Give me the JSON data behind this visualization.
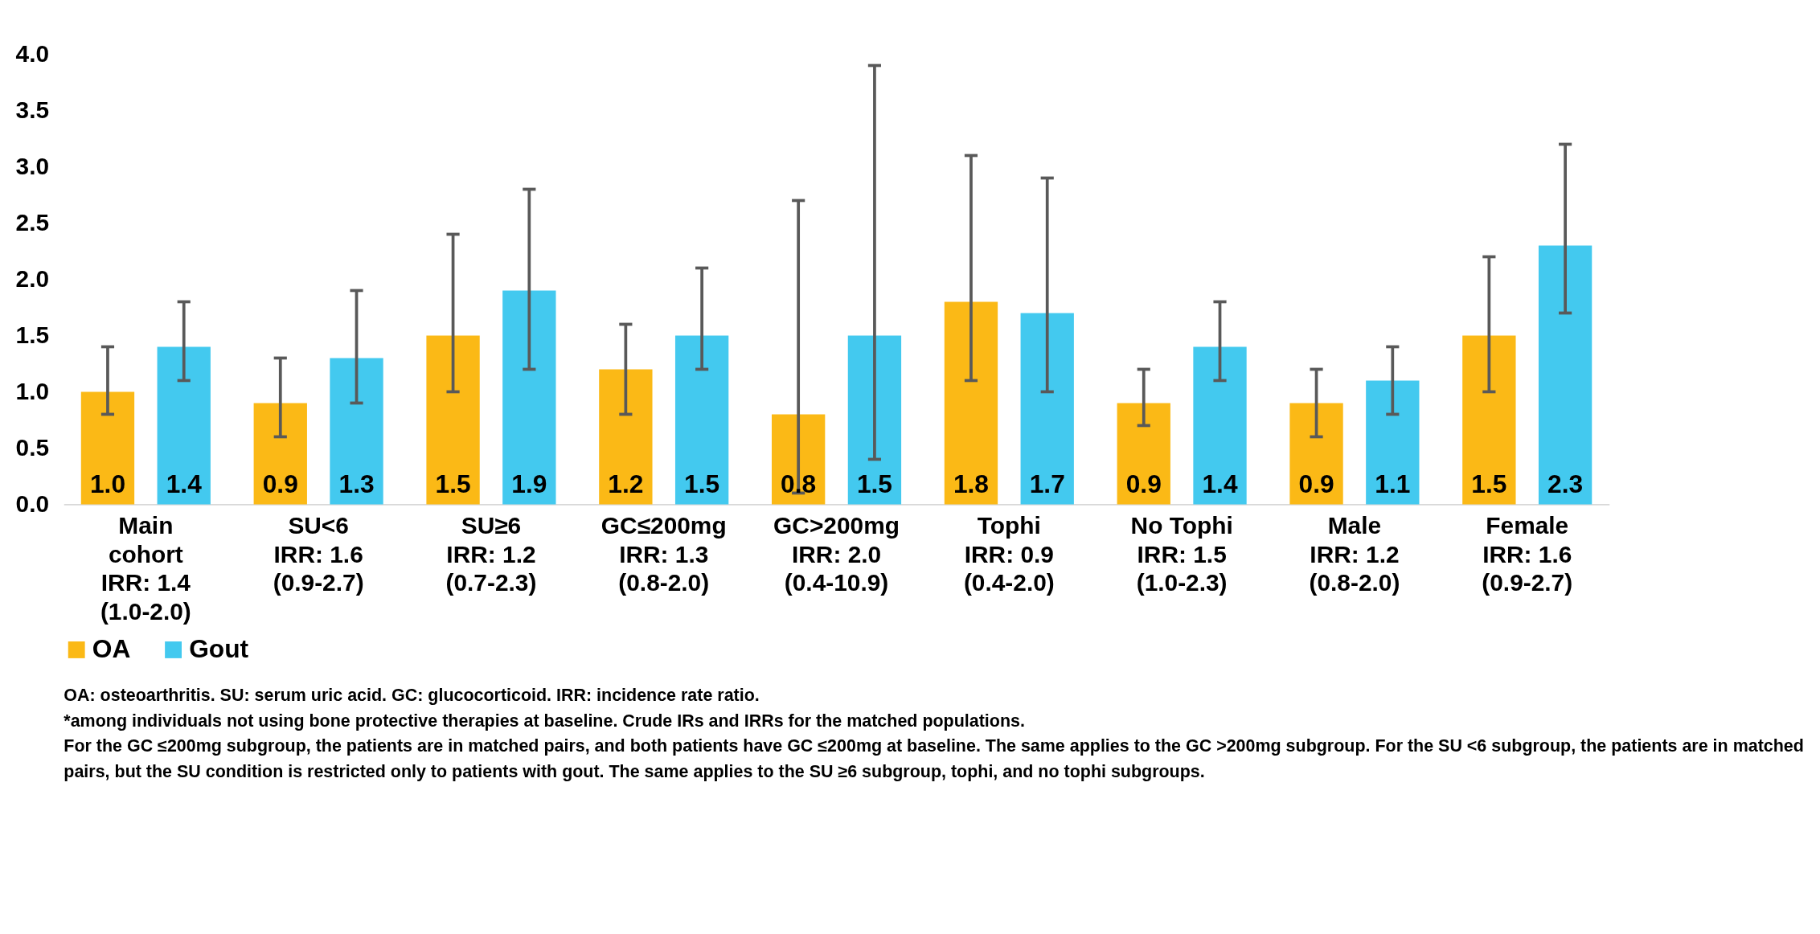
{
  "chart_data": {
    "type": "bar",
    "categories": [
      "Main\ncohort\nIRR: 1.4\n(1.0-2.0)",
      "SU<6\n\nIRR: 1.6\n(0.9-2.7)",
      "SU≥6\n\nIRR: 1.2\n(0.7-2.3)",
      "GC≤200mg\n\nIRR: 1.3\n(0.8-2.0)",
      "GC>200mg\n\nIRR: 2.0\n(0.4-10.9)",
      "Tophi\n\nIRR: 0.9\n(0.4-2.0)",
      "No Tophi\n\nIRR: 1.5\n(1.0-2.3)",
      "Male\n\nIRR: 1.2\n(0.8-2.0)",
      "Female\n\nIRR: 1.6\n(0.9-2.7)"
    ],
    "series": [
      {
        "name": "OA",
        "color": "#fbb916",
        "values": [
          1.0,
          0.9,
          1.5,
          1.2,
          0.8,
          1.8,
          0.9,
          0.9,
          1.5
        ],
        "value_labels": [
          "1.0",
          "0.9",
          "1.5",
          "1.2",
          "0.8",
          "1.8",
          "0.9",
          "0.9",
          "1.5"
        ],
        "errors": [
          [
            0.8,
            1.4
          ],
          [
            0.6,
            1.3
          ],
          [
            1.0,
            2.4
          ],
          [
            0.8,
            1.6
          ],
          [
            0.1,
            2.7
          ],
          [
            1.1,
            3.1
          ],
          [
            0.7,
            1.2
          ],
          [
            0.6,
            1.2
          ],
          [
            1.0,
            2.2
          ]
        ]
      },
      {
        "name": "Gout",
        "color": "#43c9ef",
        "values": [
          1.4,
          1.3,
          1.9,
          1.5,
          1.5,
          1.7,
          1.4,
          1.1,
          2.3
        ],
        "value_labels": [
          "1.4",
          "1.3",
          "1.9",
          "1.5",
          "1.5",
          "1.7",
          "1.4",
          "1.1",
          "2.3"
        ],
        "errors": [
          [
            1.1,
            1.8
          ],
          [
            0.9,
            1.9
          ],
          [
            1.2,
            2.8
          ],
          [
            1.2,
            2.1
          ],
          [
            0.4,
            3.9
          ],
          [
            1.0,
            2.9
          ],
          [
            1.1,
            1.8
          ],
          [
            0.8,
            1.4
          ],
          [
            1.7,
            3.2
          ]
        ]
      }
    ],
    "ylim": [
      0,
      4
    ],
    "yticks": [
      {
        "value": 0,
        "label": "0.0"
      },
      {
        "value": 0.5,
        "label": "0.5"
      },
      {
        "value": 1,
        "label": "1.0"
      },
      {
        "value": 1.5,
        "label": "1.5"
      },
      {
        "value": 2,
        "label": "2.0"
      },
      {
        "value": 2.5,
        "label": "2.5"
      },
      {
        "value": 3,
        "label": "3.0"
      },
      {
        "value": 3.5,
        "label": "3.5"
      },
      {
        "value": 4,
        "label": "4.0"
      }
    ],
    "grid": false,
    "legend": "bottom",
    "annotations": [
      "OA: osteoarthritis. SU: serum uric acid. GC: glucocorticoid. IRR: incidence rate ratio.",
      "*among individuals not using bone protective therapies at baseline. Crude IRs and IRRs for the matched populations.",
      "For the GC ≤200mg subgroup, the patients are in matched pairs, and both patients have GC ≤200mg at baseline. The same applies to the GC >200mg subgroup. For the SU <6 subgroup, the patients are in matched pairs, but the SU condition is restricted only to patients with gout. The same applies to the SU ≥6 subgroup, tophi, and no tophi subgroups."
    ]
  }
}
